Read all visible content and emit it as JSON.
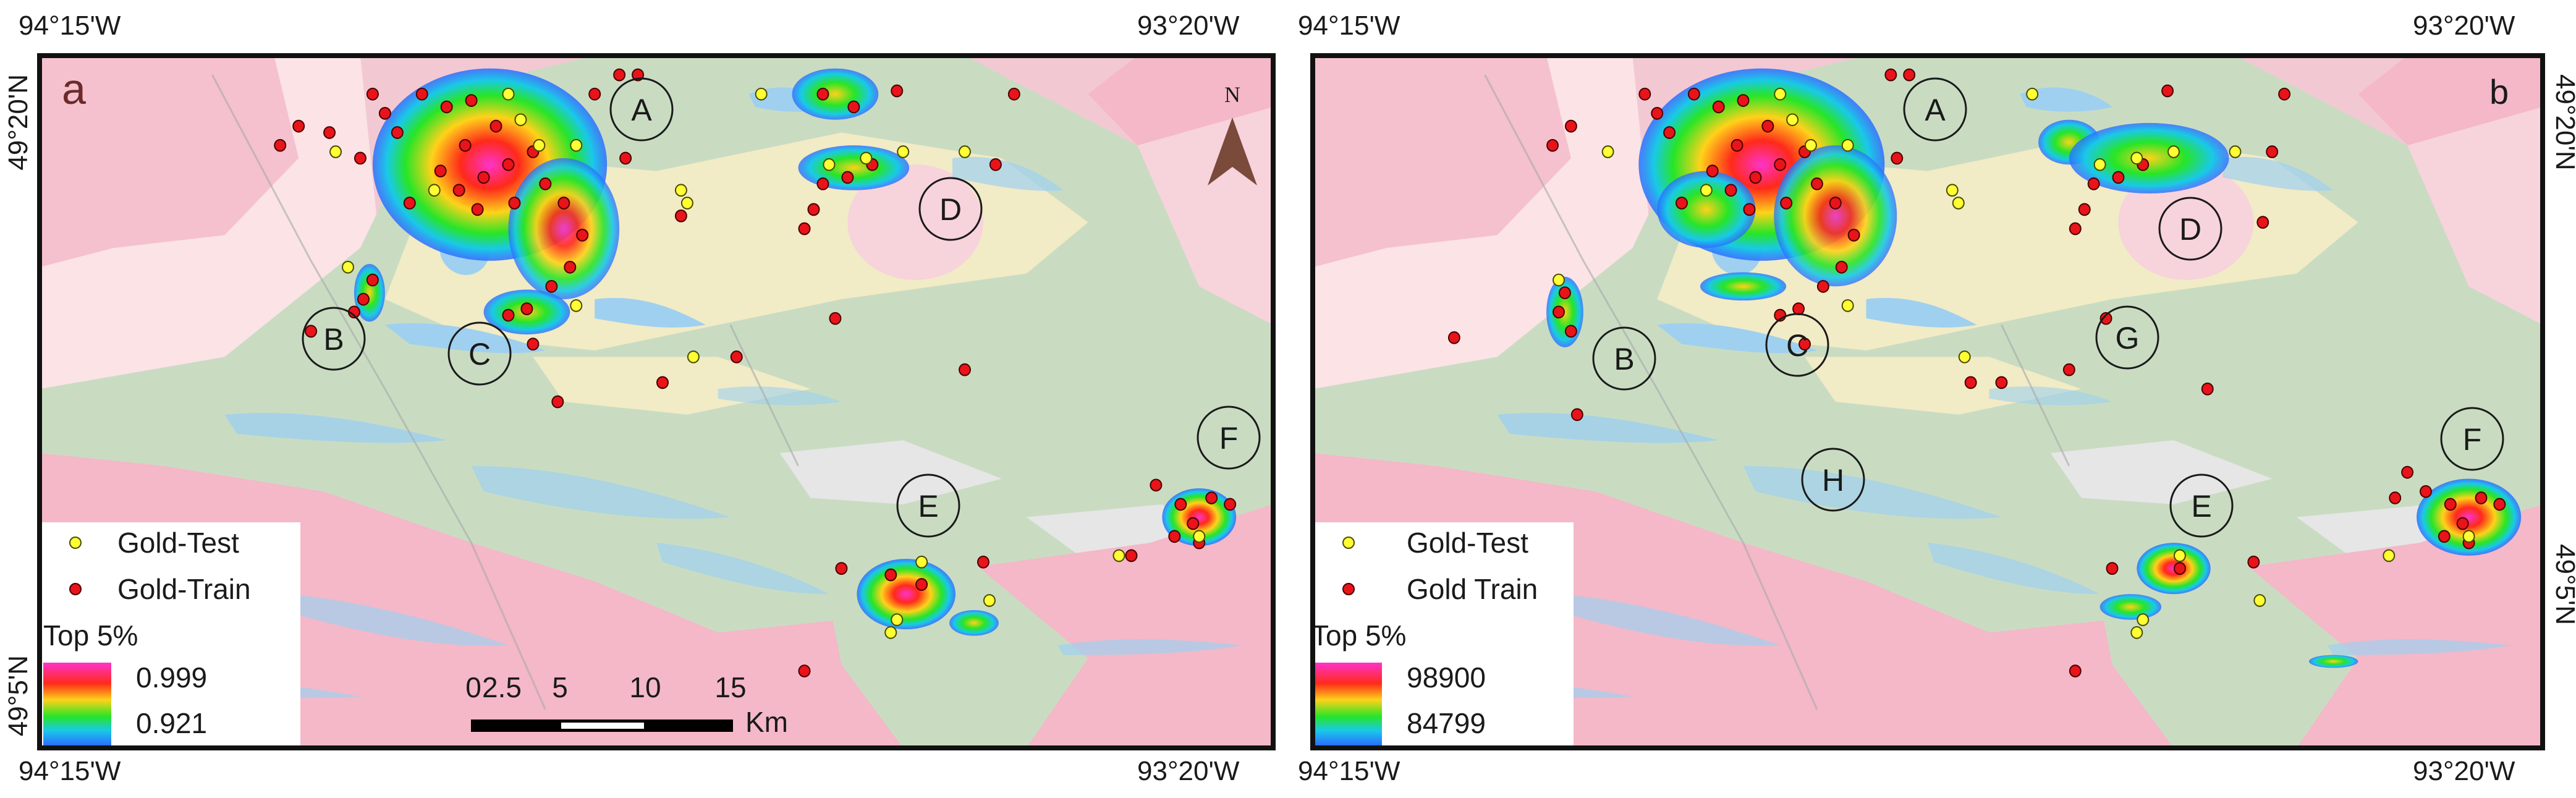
{
  "colors": {
    "background_pink": "#f2c9d3",
    "granite_pink": "#f4b8c8",
    "greenstone_green": "#c9dcc2",
    "sediment_yellow": "#f1ebc6",
    "water_blue": "#9fd0ef",
    "light_gray": "#e6e6e6",
    "pale_pink": "#fbe3e6",
    "test_point": "#ffff33",
    "train_point": "#e8141a",
    "heat_low": "#2b6dff",
    "heat_mid": "#27e527",
    "heat_high": "#ff2a1a",
    "heat_top": "#ff33cc",
    "north_arrow": "#7a4a3a"
  },
  "coords": {
    "top_left": "94°15'W",
    "top_right": "93°20'W",
    "bottom_left": "94°15'W",
    "bottom_right": "93°20'W",
    "left_top": "49°20'N",
    "left_bottom": "49°5'N"
  },
  "panels": [
    {
      "letter": "a",
      "legend": {
        "test_label": "Gold-Test",
        "train_label": "Gold-Train",
        "title": "Top 5%",
        "max": "0.999",
        "min": "0.921"
      },
      "north": "N",
      "scale": {
        "ticks": [
          "0",
          "2.5",
          "5",
          "10",
          "15"
        ],
        "unit": "Km"
      },
      "zones": [
        "A",
        "B",
        "C",
        "D",
        "E",
        "F"
      ]
    },
    {
      "letter": "b",
      "legend": {
        "test_label": "Gold-Test",
        "train_label": "Gold Train",
        "title": "Top 5%",
        "max": "98900",
        "min": "84799"
      },
      "zones": [
        "A",
        "B",
        "C",
        "D",
        "E",
        "F",
        "G",
        "H"
      ]
    }
  ]
}
